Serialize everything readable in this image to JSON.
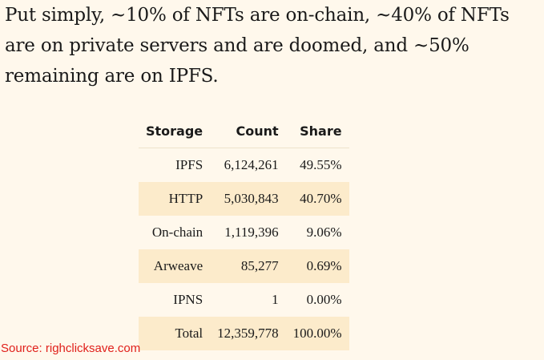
{
  "intro_text": "Put simply, ~10% of NFTs are on-chain, ~40% of NFTs are on private servers and are doomed, and ~50% remaining are on IPFS.",
  "table": {
    "headers": [
      "Storage",
      "Count",
      "Share"
    ],
    "rows": [
      [
        "IPFS",
        "6,124,261",
        "49.55%"
      ],
      [
        "HTTP",
        "5,030,843",
        "40.70%"
      ],
      [
        "On-chain",
        "1,119,396",
        "9.06%"
      ],
      [
        "Arweave",
        "85,277",
        "0.69%"
      ],
      [
        "IPNS",
        "1",
        "0.00%"
      ],
      [
        "Total",
        "12,359,778",
        "100.00%"
      ]
    ]
  },
  "source": "Source: righclicksave.com",
  "colors": {
    "background": "#fff8ec",
    "alt_row": "#fcebcb",
    "source_text": "#e0201b"
  }
}
